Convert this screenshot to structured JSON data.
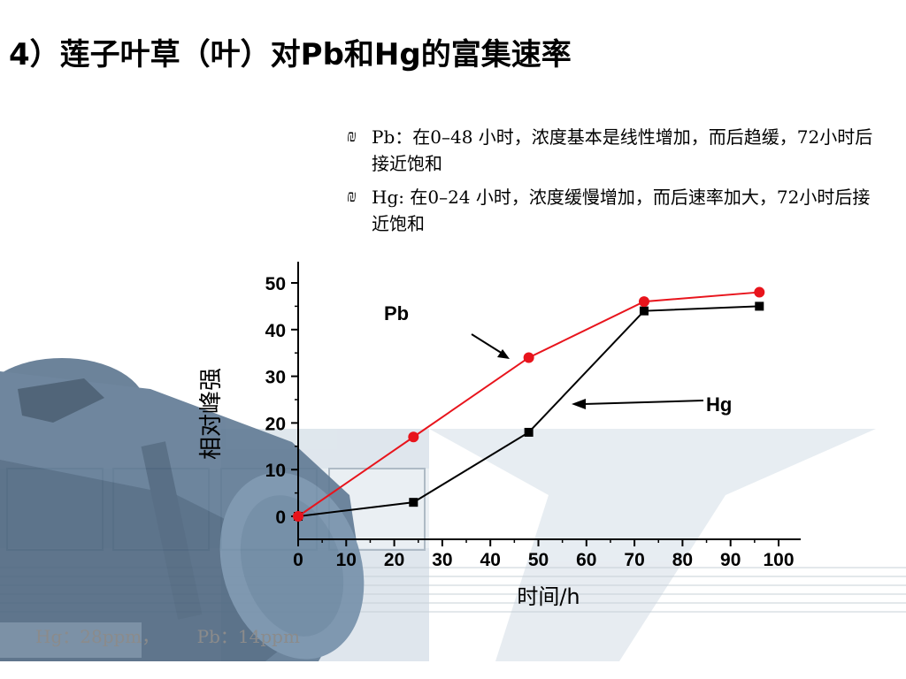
{
  "title": "4）莲子叶草（叶）对Pb和Hg的富集速率",
  "bullets": [
    {
      "icon": "bullet-icon",
      "text": "Pb：在0–48 小时，浓度基本是线性增加，而后趋缓，72小时后接近饱和"
    },
    {
      "icon": "bullet-icon",
      "text": "Hg:  在0–24 小时，浓度缓慢增加，而后速率加大，72小时后接近饱和"
    }
  ],
  "footnote": {
    "hg": "Hg：28ppm，",
    "pb": "Pb：14ppm"
  },
  "chart_data": {
    "type": "line",
    "xlabel": "时间/h",
    "ylabel": "相对峰强",
    "xlim": [
      0,
      100
    ],
    "ylim": [
      0,
      50
    ],
    "xticks": [
      0,
      10,
      20,
      30,
      40,
      50,
      60,
      70,
      80,
      90,
      100
    ],
    "yticks": [
      0,
      10,
      20,
      30,
      40,
      50
    ],
    "grid": false,
    "legend": "annotations",
    "series": [
      {
        "name": "Pb",
        "color": "#e8141c",
        "marker": "circle",
        "x": [
          0,
          24,
          48,
          72,
          96
        ],
        "y": [
          0,
          17,
          34,
          46,
          48
        ]
      },
      {
        "name": "Hg",
        "color": "#000000",
        "marker": "square",
        "x": [
          0,
          24,
          48,
          72,
          96
        ],
        "y": [
          0,
          3,
          18,
          44,
          45
        ]
      }
    ]
  }
}
